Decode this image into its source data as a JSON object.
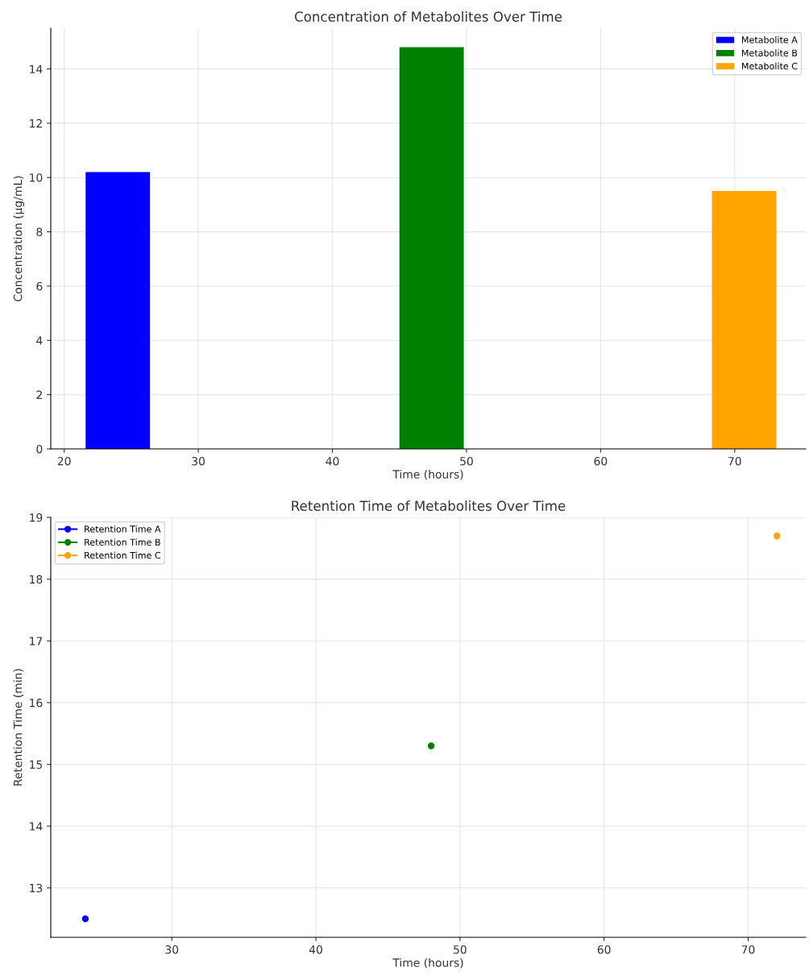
{
  "chart_data": [
    {
      "type": "bar",
      "title": "Concentration of Metabolites Over Time",
      "xlabel": "Time (hours)",
      "ylabel": "Concentration (µg/mL)",
      "xlim": [
        19,
        75.3
      ],
      "xticks": [
        20,
        30,
        40,
        50,
        60,
        70
      ],
      "ylim": [
        0,
        15.5
      ],
      "yticks": [
        0,
        2,
        4,
        6,
        8,
        10,
        12,
        14
      ],
      "grid": true,
      "legend": "top right",
      "series": [
        {
          "name": "Metabolite A",
          "color": "#0000ff",
          "x": [
            24
          ],
          "values": [
            10.2
          ]
        },
        {
          "name": "Metabolite B",
          "color": "#008000",
          "x": [
            47.4
          ],
          "values": [
            14.8
          ]
        },
        {
          "name": "Metabolite C",
          "color": "#ffa500",
          "x": [
            70.7
          ],
          "values": [
            9.5
          ]
        }
      ]
    },
    {
      "type": "line",
      "title": "Retention Time of Metabolites Over Time",
      "xlabel": "Time (hours)",
      "ylabel": "Retention Time (min)",
      "xlim": [
        21.6,
        74
      ],
      "xticks": [
        30,
        40,
        50,
        60,
        70
      ],
      "ylim": [
        12.2,
        19
      ],
      "yticks": [
        13,
        14,
        15,
        16,
        17,
        18,
        19
      ],
      "grid": true,
      "legend": "top left",
      "marker": "circle",
      "series": [
        {
          "name": "Retention Time A",
          "color": "#0000ff",
          "x": [
            24
          ],
          "values": [
            12.5
          ]
        },
        {
          "name": "Retention Time B",
          "color": "#008000",
          "x": [
            48
          ],
          "values": [
            15.3
          ]
        },
        {
          "name": "Retention Time C",
          "color": "#ffa500",
          "x": [
            72
          ],
          "values": [
            18.7
          ]
        }
      ]
    }
  ]
}
